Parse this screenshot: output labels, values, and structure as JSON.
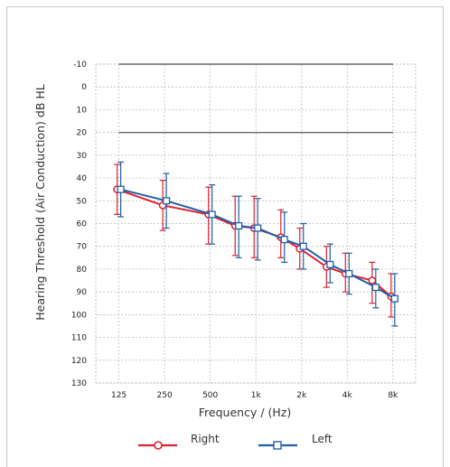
{
  "chart_data": {
    "type": "line",
    "xlabel": "Frequency / (Hz)",
    "ylabel": "Hearing Threshold (Air Conduction) dB HL",
    "x_scale": "log",
    "y_inverted": true,
    "ylim": [
      -10,
      130
    ],
    "yticks": [
      -10,
      0,
      10,
      20,
      30,
      40,
      50,
      60,
      70,
      80,
      90,
      100,
      110,
      120,
      130
    ],
    "x_ticks": [
      {
        "value": 125,
        "label": "125"
      },
      {
        "value": 250,
        "label": "250"
      },
      {
        "value": 500,
        "label": "500"
      },
      {
        "value": 1000,
        "label": "1k"
      },
      {
        "value": 2000,
        "label": "2k"
      },
      {
        "value": 4000,
        "label": "4k"
      },
      {
        "value": 8000,
        "label": "8k"
      }
    ],
    "xlim": [
      88,
      11300
    ],
    "grid": true,
    "reference_lines": [
      -10,
      20
    ],
    "legend_position": "bottom",
    "series": [
      {
        "name": "Right",
        "color": "#e0202e",
        "marker": "circle",
        "x": [
          125,
          250,
          500,
          750,
          1000,
          1500,
          2000,
          3000,
          4000,
          6000,
          8000
        ],
        "y": [
          45,
          52,
          56,
          61,
          62,
          66,
          71,
          79,
          82,
          85,
          92
        ],
        "err_low": [
          34,
          41,
          44,
          48,
          48,
          54,
          62,
          70,
          73,
          77,
          82
        ],
        "err_high": [
          56,
          63,
          69,
          74,
          75,
          75,
          80,
          88,
          90,
          95,
          101
        ]
      },
      {
        "name": "Left",
        "color": "#1f5fa8",
        "marker": "square",
        "x": [
          125,
          250,
          500,
          750,
          1000,
          1500,
          2000,
          3000,
          4000,
          6000,
          8000
        ],
        "y": [
          45,
          50,
          56,
          61,
          62,
          67,
          70,
          78,
          82,
          88,
          93
        ],
        "err_low": [
          33,
          38,
          43,
          48,
          49,
          55,
          60,
          69,
          73,
          80,
          82
        ],
        "err_high": [
          57,
          62,
          69,
          75,
          76,
          77,
          80,
          86,
          91,
          97,
          105
        ]
      }
    ]
  }
}
